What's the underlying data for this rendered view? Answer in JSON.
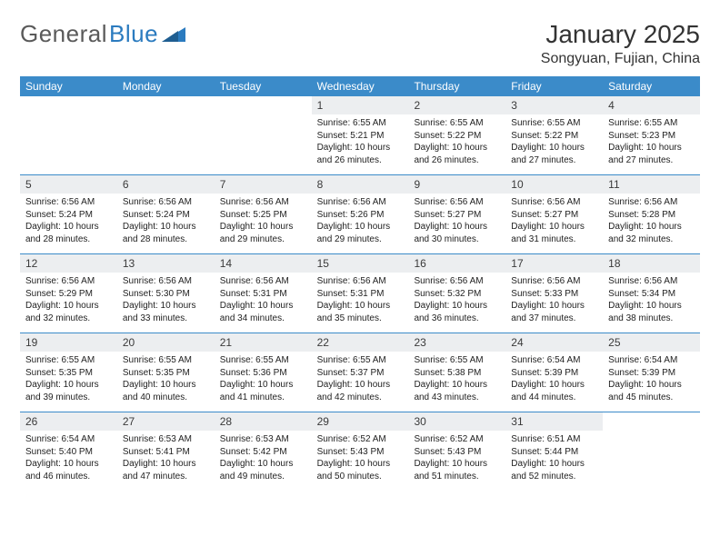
{
  "brand": {
    "part1": "General",
    "part2": "Blue"
  },
  "title": "January 2025",
  "location": "Songyuan, Fujian, China",
  "colors": {
    "header_bar": "#3b8bc9",
    "daynum_bg": "#eceef0",
    "week_border": "#3b8bc9",
    "text": "#222222",
    "logo_gray": "#5a5a5a",
    "logo_blue": "#2b7bbf",
    "background": "#ffffff"
  },
  "fonts": {
    "title_size": 28,
    "location_size": 16,
    "dow_size": 12,
    "daynum_size": 12,
    "body_size": 10
  },
  "days_of_week": [
    "Sunday",
    "Monday",
    "Tuesday",
    "Wednesday",
    "Thursday",
    "Friday",
    "Saturday"
  ],
  "weeks": [
    [
      {
        "n": "",
        "sunrise": "",
        "sunset": "",
        "daylight": ""
      },
      {
        "n": "",
        "sunrise": "",
        "sunset": "",
        "daylight": ""
      },
      {
        "n": "",
        "sunrise": "",
        "sunset": "",
        "daylight": ""
      },
      {
        "n": "1",
        "sunrise": "Sunrise: 6:55 AM",
        "sunset": "Sunset: 5:21 PM",
        "daylight": "Daylight: 10 hours and 26 minutes."
      },
      {
        "n": "2",
        "sunrise": "Sunrise: 6:55 AM",
        "sunset": "Sunset: 5:22 PM",
        "daylight": "Daylight: 10 hours and 26 minutes."
      },
      {
        "n": "3",
        "sunrise": "Sunrise: 6:55 AM",
        "sunset": "Sunset: 5:22 PM",
        "daylight": "Daylight: 10 hours and 27 minutes."
      },
      {
        "n": "4",
        "sunrise": "Sunrise: 6:55 AM",
        "sunset": "Sunset: 5:23 PM",
        "daylight": "Daylight: 10 hours and 27 minutes."
      }
    ],
    [
      {
        "n": "5",
        "sunrise": "Sunrise: 6:56 AM",
        "sunset": "Sunset: 5:24 PM",
        "daylight": "Daylight: 10 hours and 28 minutes."
      },
      {
        "n": "6",
        "sunrise": "Sunrise: 6:56 AM",
        "sunset": "Sunset: 5:24 PM",
        "daylight": "Daylight: 10 hours and 28 minutes."
      },
      {
        "n": "7",
        "sunrise": "Sunrise: 6:56 AM",
        "sunset": "Sunset: 5:25 PM",
        "daylight": "Daylight: 10 hours and 29 minutes."
      },
      {
        "n": "8",
        "sunrise": "Sunrise: 6:56 AM",
        "sunset": "Sunset: 5:26 PM",
        "daylight": "Daylight: 10 hours and 29 minutes."
      },
      {
        "n": "9",
        "sunrise": "Sunrise: 6:56 AM",
        "sunset": "Sunset: 5:27 PM",
        "daylight": "Daylight: 10 hours and 30 minutes."
      },
      {
        "n": "10",
        "sunrise": "Sunrise: 6:56 AM",
        "sunset": "Sunset: 5:27 PM",
        "daylight": "Daylight: 10 hours and 31 minutes."
      },
      {
        "n": "11",
        "sunrise": "Sunrise: 6:56 AM",
        "sunset": "Sunset: 5:28 PM",
        "daylight": "Daylight: 10 hours and 32 minutes."
      }
    ],
    [
      {
        "n": "12",
        "sunrise": "Sunrise: 6:56 AM",
        "sunset": "Sunset: 5:29 PM",
        "daylight": "Daylight: 10 hours and 32 minutes."
      },
      {
        "n": "13",
        "sunrise": "Sunrise: 6:56 AM",
        "sunset": "Sunset: 5:30 PM",
        "daylight": "Daylight: 10 hours and 33 minutes."
      },
      {
        "n": "14",
        "sunrise": "Sunrise: 6:56 AM",
        "sunset": "Sunset: 5:31 PM",
        "daylight": "Daylight: 10 hours and 34 minutes."
      },
      {
        "n": "15",
        "sunrise": "Sunrise: 6:56 AM",
        "sunset": "Sunset: 5:31 PM",
        "daylight": "Daylight: 10 hours and 35 minutes."
      },
      {
        "n": "16",
        "sunrise": "Sunrise: 6:56 AM",
        "sunset": "Sunset: 5:32 PM",
        "daylight": "Daylight: 10 hours and 36 minutes."
      },
      {
        "n": "17",
        "sunrise": "Sunrise: 6:56 AM",
        "sunset": "Sunset: 5:33 PM",
        "daylight": "Daylight: 10 hours and 37 minutes."
      },
      {
        "n": "18",
        "sunrise": "Sunrise: 6:56 AM",
        "sunset": "Sunset: 5:34 PM",
        "daylight": "Daylight: 10 hours and 38 minutes."
      }
    ],
    [
      {
        "n": "19",
        "sunrise": "Sunrise: 6:55 AM",
        "sunset": "Sunset: 5:35 PM",
        "daylight": "Daylight: 10 hours and 39 minutes."
      },
      {
        "n": "20",
        "sunrise": "Sunrise: 6:55 AM",
        "sunset": "Sunset: 5:35 PM",
        "daylight": "Daylight: 10 hours and 40 minutes."
      },
      {
        "n": "21",
        "sunrise": "Sunrise: 6:55 AM",
        "sunset": "Sunset: 5:36 PM",
        "daylight": "Daylight: 10 hours and 41 minutes."
      },
      {
        "n": "22",
        "sunrise": "Sunrise: 6:55 AM",
        "sunset": "Sunset: 5:37 PM",
        "daylight": "Daylight: 10 hours and 42 minutes."
      },
      {
        "n": "23",
        "sunrise": "Sunrise: 6:55 AM",
        "sunset": "Sunset: 5:38 PM",
        "daylight": "Daylight: 10 hours and 43 minutes."
      },
      {
        "n": "24",
        "sunrise": "Sunrise: 6:54 AM",
        "sunset": "Sunset: 5:39 PM",
        "daylight": "Daylight: 10 hours and 44 minutes."
      },
      {
        "n": "25",
        "sunrise": "Sunrise: 6:54 AM",
        "sunset": "Sunset: 5:39 PM",
        "daylight": "Daylight: 10 hours and 45 minutes."
      }
    ],
    [
      {
        "n": "26",
        "sunrise": "Sunrise: 6:54 AM",
        "sunset": "Sunset: 5:40 PM",
        "daylight": "Daylight: 10 hours and 46 minutes."
      },
      {
        "n": "27",
        "sunrise": "Sunrise: 6:53 AM",
        "sunset": "Sunset: 5:41 PM",
        "daylight": "Daylight: 10 hours and 47 minutes."
      },
      {
        "n": "28",
        "sunrise": "Sunrise: 6:53 AM",
        "sunset": "Sunset: 5:42 PM",
        "daylight": "Daylight: 10 hours and 49 minutes."
      },
      {
        "n": "29",
        "sunrise": "Sunrise: 6:52 AM",
        "sunset": "Sunset: 5:43 PM",
        "daylight": "Daylight: 10 hours and 50 minutes."
      },
      {
        "n": "30",
        "sunrise": "Sunrise: 6:52 AM",
        "sunset": "Sunset: 5:43 PM",
        "daylight": "Daylight: 10 hours and 51 minutes."
      },
      {
        "n": "31",
        "sunrise": "Sunrise: 6:51 AM",
        "sunset": "Sunset: 5:44 PM",
        "daylight": "Daylight: 10 hours and 52 minutes."
      },
      {
        "n": "",
        "sunrise": "",
        "sunset": "",
        "daylight": ""
      }
    ]
  ]
}
